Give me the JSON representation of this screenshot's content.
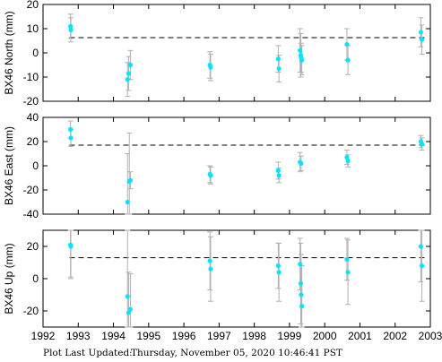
{
  "chart_data": [
    {
      "type": "scatter",
      "ylabel": "BX46 North (mm)",
      "xlim": [
        1992,
        2003
      ],
      "ylim": [
        -20,
        20
      ],
      "yticks": [
        -20,
        -10,
        0,
        10,
        20
      ],
      "xticks": [
        1992,
        1993,
        1994,
        1995,
        1996,
        1997,
        1998,
        1999,
        2000,
        2001,
        2002,
        2003
      ],
      "reference_line": 6.3,
      "grid": false,
      "marker_color": "#00e5ff",
      "errorbar_color": "#b0b0b0",
      "points": [
        {
          "x": 1992.78,
          "y": 11.0,
          "err": 5.0
        },
        {
          "x": 1992.79,
          "y": 9.5,
          "err": 5.0
        },
        {
          "x": 1994.4,
          "y": -11.0,
          "err": 7.0
        },
        {
          "x": 1994.43,
          "y": -8.5,
          "err": 7.0
        },
        {
          "x": 1994.48,
          "y": -5.0,
          "err": 6.0
        },
        {
          "x": 1996.74,
          "y": -5.0,
          "err": 5.5
        },
        {
          "x": 1996.76,
          "y": -6.0,
          "err": 5.5
        },
        {
          "x": 1998.68,
          "y": -2.5,
          "err": 5.5
        },
        {
          "x": 1998.7,
          "y": -6.5,
          "err": 5.5
        },
        {
          "x": 1999.3,
          "y": 1.0,
          "err": 9.0
        },
        {
          "x": 1999.32,
          "y": -1.0,
          "err": 9.0
        },
        {
          "x": 1999.33,
          "y": -2.0,
          "err": 6.0
        },
        {
          "x": 1999.35,
          "y": -3.0,
          "err": 6.0
        },
        {
          "x": 2000.63,
          "y": 3.5,
          "err": 6.5
        },
        {
          "x": 2000.66,
          "y": -3.0,
          "err": 6.0
        },
        {
          "x": 2002.73,
          "y": 8.5,
          "err": 6.0
        },
        {
          "x": 2002.76,
          "y": 5.5,
          "err": 6.0
        }
      ]
    },
    {
      "type": "scatter",
      "ylabel": "BX46 East (mm)",
      "xlim": [
        1992,
        2003
      ],
      "ylim": [
        -40,
        40
      ],
      "yticks": [
        -40,
        -20,
        0,
        20,
        40
      ],
      "xticks": [
        1992,
        1993,
        1994,
        1995,
        1996,
        1997,
        1998,
        1999,
        2000,
        2001,
        2002,
        2003
      ],
      "reference_line": 17.0,
      "grid": false,
      "marker_color": "#00e5ff",
      "errorbar_color": "#b0b0b0",
      "points": [
        {
          "x": 1992.78,
          "y": 30.0,
          "err": 7.0
        },
        {
          "x": 1992.79,
          "y": 23.0,
          "err": 7.0
        },
        {
          "x": 1994.4,
          "y": -30.0,
          "err": 40.0
        },
        {
          "x": 1994.45,
          "y": -13.0,
          "err": 40.0
        },
        {
          "x": 1994.48,
          "y": -12.0,
          "err": 7.0
        },
        {
          "x": 1996.74,
          "y": -7.0,
          "err": 7.0
        },
        {
          "x": 1996.76,
          "y": -8.0,
          "err": 7.0
        },
        {
          "x": 1998.68,
          "y": -4.0,
          "err": 7.0
        },
        {
          "x": 1998.7,
          "y": -8.0,
          "err": 6.0
        },
        {
          "x": 1999.3,
          "y": 3.0,
          "err": 8.0
        },
        {
          "x": 1999.33,
          "y": 2.0,
          "err": 6.0
        },
        {
          "x": 2000.63,
          "y": 7.0,
          "err": 6.0
        },
        {
          "x": 2000.66,
          "y": 4.0,
          "err": 5.0
        },
        {
          "x": 2002.73,
          "y": 20.0,
          "err": 5.0
        },
        {
          "x": 2002.76,
          "y": 18.0,
          "err": 5.0
        }
      ]
    },
    {
      "type": "scatter",
      "ylabel": "BX46 Up (mm)",
      "xlim": [
        1992,
        2003
      ],
      "ylim": [
        -30,
        30
      ],
      "yticks": [
        -20,
        0,
        20
      ],
      "xticks": [
        1992,
        1993,
        1994,
        1995,
        1996,
        1997,
        1998,
        1999,
        2000,
        2001,
        2002,
        2003
      ],
      "xticklabels": [
        "1992",
        "1993",
        "1994",
        "1995",
        "1996",
        "1997",
        "1998",
        "1999",
        "2000",
        "2001",
        "2002",
        "2003"
      ],
      "reference_line": 13.0,
      "grid": false,
      "marker_color": "#00e5ff",
      "errorbar_color": "#b0b0b0",
      "points": [
        {
          "x": 1992.78,
          "y": 21.0,
          "err": 20.0
        },
        {
          "x": 1992.79,
          "y": 20.0,
          "err": 20.0
        },
        {
          "x": 1994.4,
          "y": -11.0,
          "err": 45.0
        },
        {
          "x": 1994.43,
          "y": -21.0,
          "err": 25.0
        },
        {
          "x": 1994.48,
          "y": -19.0,
          "err": 22.0
        },
        {
          "x": 1996.74,
          "y": 11.0,
          "err": 18.0
        },
        {
          "x": 1996.76,
          "y": 6.0,
          "err": 20.0
        },
        {
          "x": 1998.68,
          "y": 8.0,
          "err": 14.0
        },
        {
          "x": 1998.7,
          "y": 4.0,
          "err": 18.0
        },
        {
          "x": 1999.3,
          "y": 9.0,
          "err": 16.0
        },
        {
          "x": 1999.32,
          "y": -3.0,
          "err": 25.0
        },
        {
          "x": 1999.33,
          "y": -10.0,
          "err": 25.0
        },
        {
          "x": 1999.35,
          "y": -17.0,
          "err": 25.0
        },
        {
          "x": 2000.63,
          "y": 12.0,
          "err": 13.0
        },
        {
          "x": 2000.66,
          "y": 4.0,
          "err": 20.0
        },
        {
          "x": 2002.73,
          "y": 20.0,
          "err": 22.0
        },
        {
          "x": 2002.76,
          "y": 8.0,
          "err": 22.0
        }
      ]
    }
  ],
  "footer": {
    "label": "Plot Last Updated:",
    "timestamp": "Thursday, November 05, 2020 10:46:41 PST"
  }
}
